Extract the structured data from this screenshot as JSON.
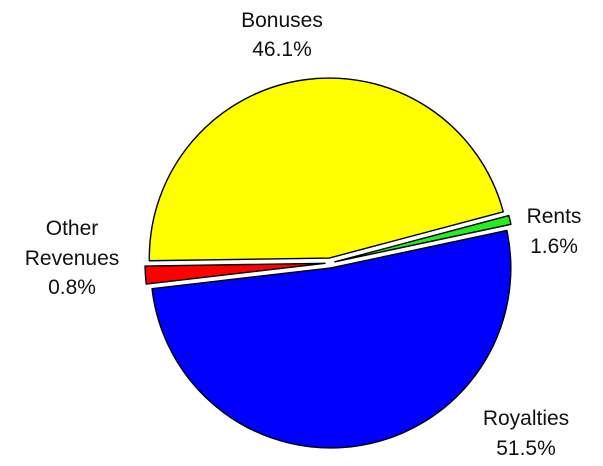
{
  "chart_data": {
    "type": "pie",
    "title": "",
    "slices": [
      {
        "label": "Bonuses",
        "label_lines": [
          "Bonuses"
        ],
        "value": 46.1,
        "value_label": "46.1%",
        "color": "#ffff00"
      },
      {
        "label": "Rents",
        "label_lines": [
          "Rents"
        ],
        "value": 1.6,
        "value_label": "1.6%",
        "color": "#ff0000"
      },
      {
        "label": "Royalties",
        "label_lines": [
          "Royalties"
        ],
        "value": 51.5,
        "value_label": "51.5%",
        "color": "#0000ff"
      },
      {
        "label": "Other Revenues",
        "label_lines": [
          "Other",
          "Revenues"
        ],
        "value": 0.8,
        "value_label": "0.8%",
        "color": "#22ee22"
      }
    ],
    "legend": "none"
  }
}
